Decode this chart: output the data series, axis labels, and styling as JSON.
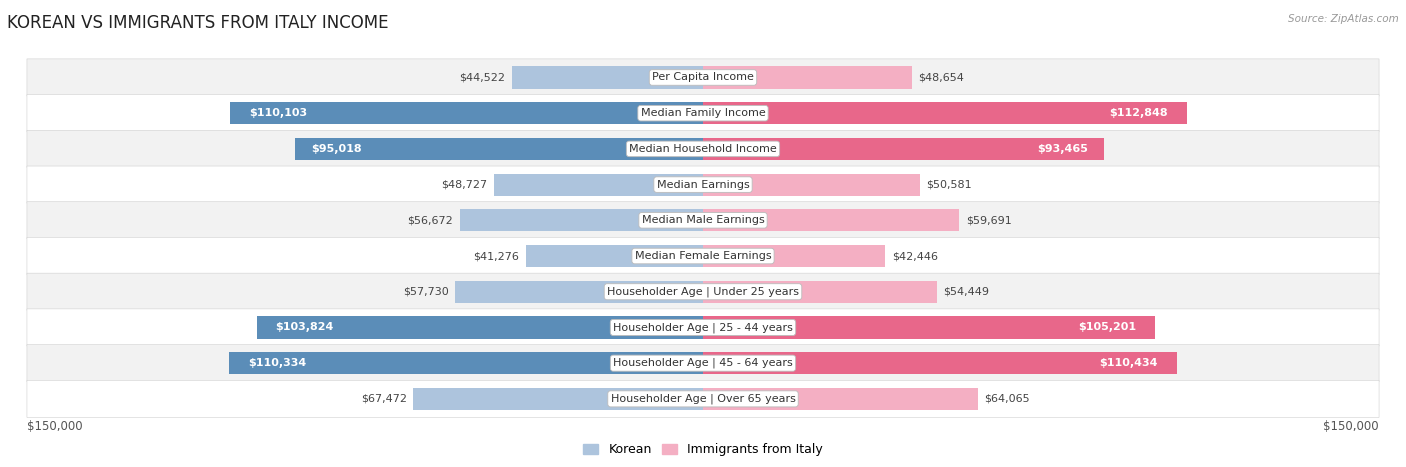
{
  "title": "KOREAN VS IMMIGRANTS FROM ITALY INCOME",
  "source": "Source: ZipAtlas.com",
  "categories": [
    "Per Capita Income",
    "Median Family Income",
    "Median Household Income",
    "Median Earnings",
    "Median Male Earnings",
    "Median Female Earnings",
    "Householder Age | Under 25 years",
    "Householder Age | 25 - 44 years",
    "Householder Age | 45 - 64 years",
    "Householder Age | Over 65 years"
  ],
  "korean_values": [
    44522,
    110103,
    95018,
    48727,
    56672,
    41276,
    57730,
    103824,
    110334,
    67472
  ],
  "italy_values": [
    48654,
    112848,
    93465,
    50581,
    59691,
    42446,
    54449,
    105201,
    110434,
    64065
  ],
  "korean_labels": [
    "$44,522",
    "$110,103",
    "$95,018",
    "$48,727",
    "$56,672",
    "$41,276",
    "$57,730",
    "$103,824",
    "$110,334",
    "$67,472"
  ],
  "italy_labels": [
    "$48,654",
    "$112,848",
    "$93,465",
    "$50,581",
    "$59,691",
    "$42,446",
    "$54,449",
    "$105,201",
    "$110,434",
    "$64,065"
  ],
  "korean_color_light": "#adc4dd",
  "italy_color_light": "#f4afc3",
  "korean_color_full": "#5b8db8",
  "italy_color_full": "#e8678a",
  "row_colors": [
    "#f2f2f2",
    "#ffffff",
    "#f2f2f2",
    "#ffffff",
    "#f2f2f2",
    "#ffffff",
    "#f2f2f2",
    "#ffffff",
    "#f2f2f2",
    "#ffffff"
  ],
  "max_value": 150000,
  "legend_korean": "Korean",
  "legend_italy": "Immigrants from Italy",
  "x_label_left": "$150,000",
  "x_label_right": "$150,000",
  "bar_height": 0.62,
  "title_fontsize": 12,
  "label_fontsize": 8,
  "category_fontsize": 8,
  "axis_fontsize": 8.5,
  "threshold": 75000
}
